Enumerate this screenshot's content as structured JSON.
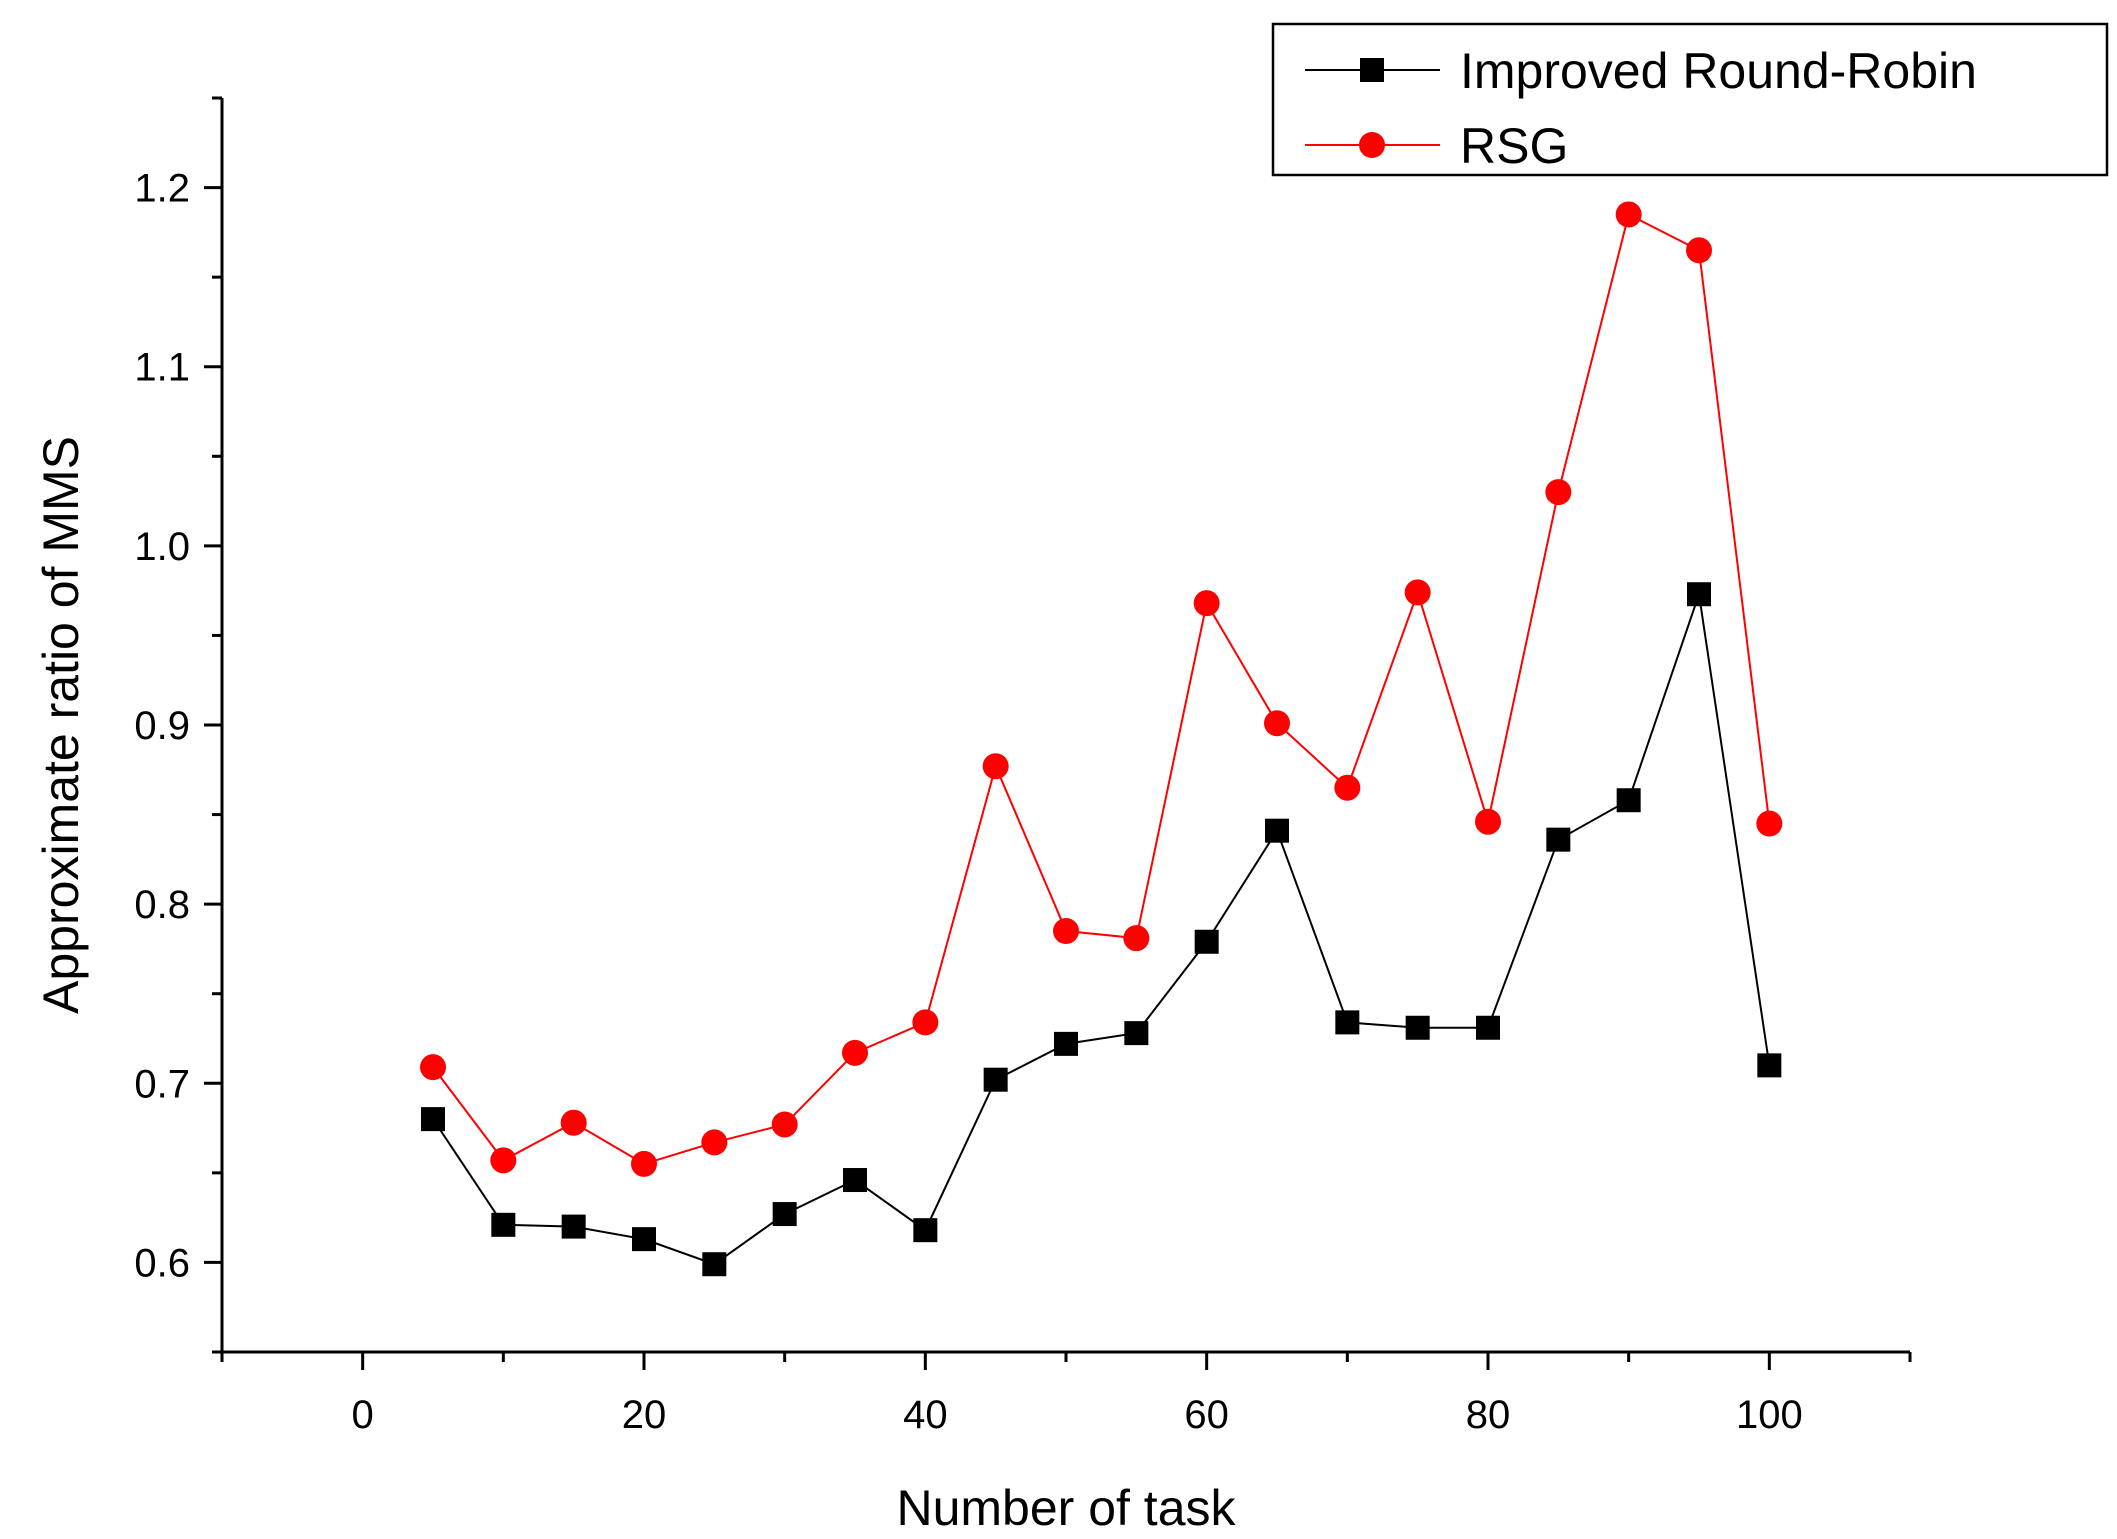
{
  "chart_data": {
    "type": "line",
    "xlabel": "Number of task",
    "ylabel": "Approximate ratio of MMS",
    "xlim": [
      -10,
      110
    ],
    "ylim": [
      0.55,
      1.25
    ],
    "x_ticks": [
      0,
      20,
      40,
      60,
      80,
      100
    ],
    "x_tick_labels": [
      "0",
      "20",
      "40",
      "60",
      "80",
      "100"
    ],
    "y_ticks": [
      0.6,
      0.7,
      0.8,
      0.9,
      1.0,
      1.1,
      1.2
    ],
    "y_tick_labels": [
      "0.6",
      "0.7",
      "0.8",
      "0.9",
      "1.0",
      "1.1",
      "1.2"
    ],
    "grid": false,
    "legend_position": "top-right",
    "x": [
      5,
      10,
      15,
      20,
      25,
      30,
      35,
      40,
      45,
      50,
      55,
      60,
      65,
      70,
      75,
      80,
      85,
      90,
      95,
      100
    ],
    "series": [
      {
        "name": "Improved Round-Robin",
        "color": "#000000",
        "marker": "square",
        "values": [
          0.68,
          0.621,
          0.62,
          0.613,
          0.599,
          0.627,
          0.646,
          0.618,
          0.702,
          0.722,
          0.728,
          0.779,
          0.841,
          0.734,
          0.731,
          0.731,
          0.836,
          0.858,
          0.973,
          0.71
        ]
      },
      {
        "name": "RSG",
        "color": "#ff0000",
        "marker": "circle",
        "values": [
          0.709,
          0.657,
          0.678,
          0.655,
          0.667,
          0.677,
          0.717,
          0.734,
          0.877,
          0.785,
          0.781,
          0.968,
          0.901,
          0.865,
          0.974,
          0.846,
          1.03,
          1.185,
          1.165,
          0.845
        ]
      }
    ]
  }
}
